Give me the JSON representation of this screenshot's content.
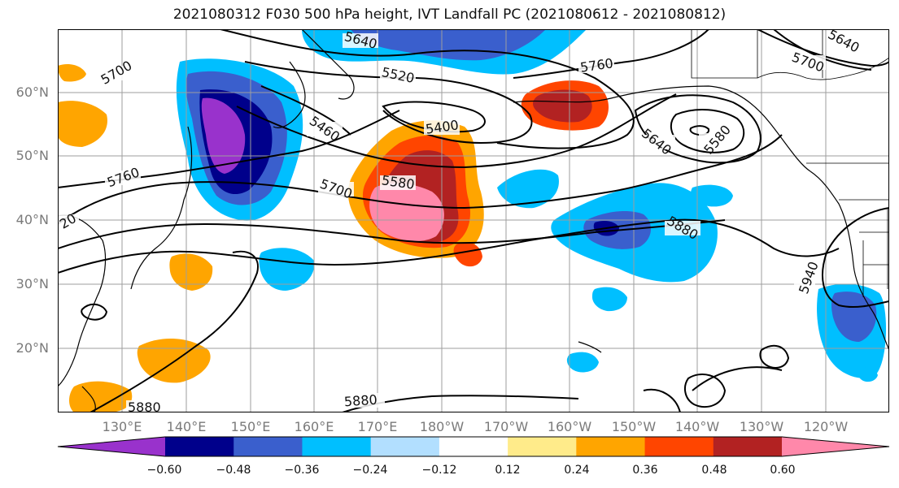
{
  "title": "2021080312 F030 500 hPa height, IVT Landfall PC (2021080612 - 2021080812)",
  "map": {
    "lat_ticks": [
      "60°N",
      "50°N",
      "40°N",
      "30°N",
      "20°N"
    ],
    "lon_ticks": [
      "130°E",
      "140°E",
      "150°E",
      "160°E",
      "170°E",
      "180°W",
      "170°W",
      "160°W",
      "150°W",
      "140°W",
      "130°W",
      "120°W"
    ],
    "contour_labels": [
      "5640",
      "5520",
      "5760",
      "5700",
      "5640",
      "5700",
      "5460",
      "5400",
      "5640",
      "5580",
      "5760",
      "5700",
      "5580",
      "5880",
      "20",
      "5880",
      "5880",
      "5940"
    ],
    "contour_color": "#000000",
    "coast_color": "#000000",
    "grid_color": "#9e9e9e"
  },
  "colorbar": {
    "tick_labels": [
      "−0.60",
      "−0.48",
      "−0.36",
      "−0.24",
      "−0.12",
      "0.12",
      "0.24",
      "0.36",
      "0.48",
      "0.60"
    ],
    "colors": [
      "#9932cc",
      "#00008b",
      "#3a5fcd",
      "#00bfff",
      "#b2dfff",
      "#ffffff",
      "#ffeb8a",
      "#ffa500",
      "#ff4500",
      "#b22222",
      "#ff88aa"
    ]
  }
}
